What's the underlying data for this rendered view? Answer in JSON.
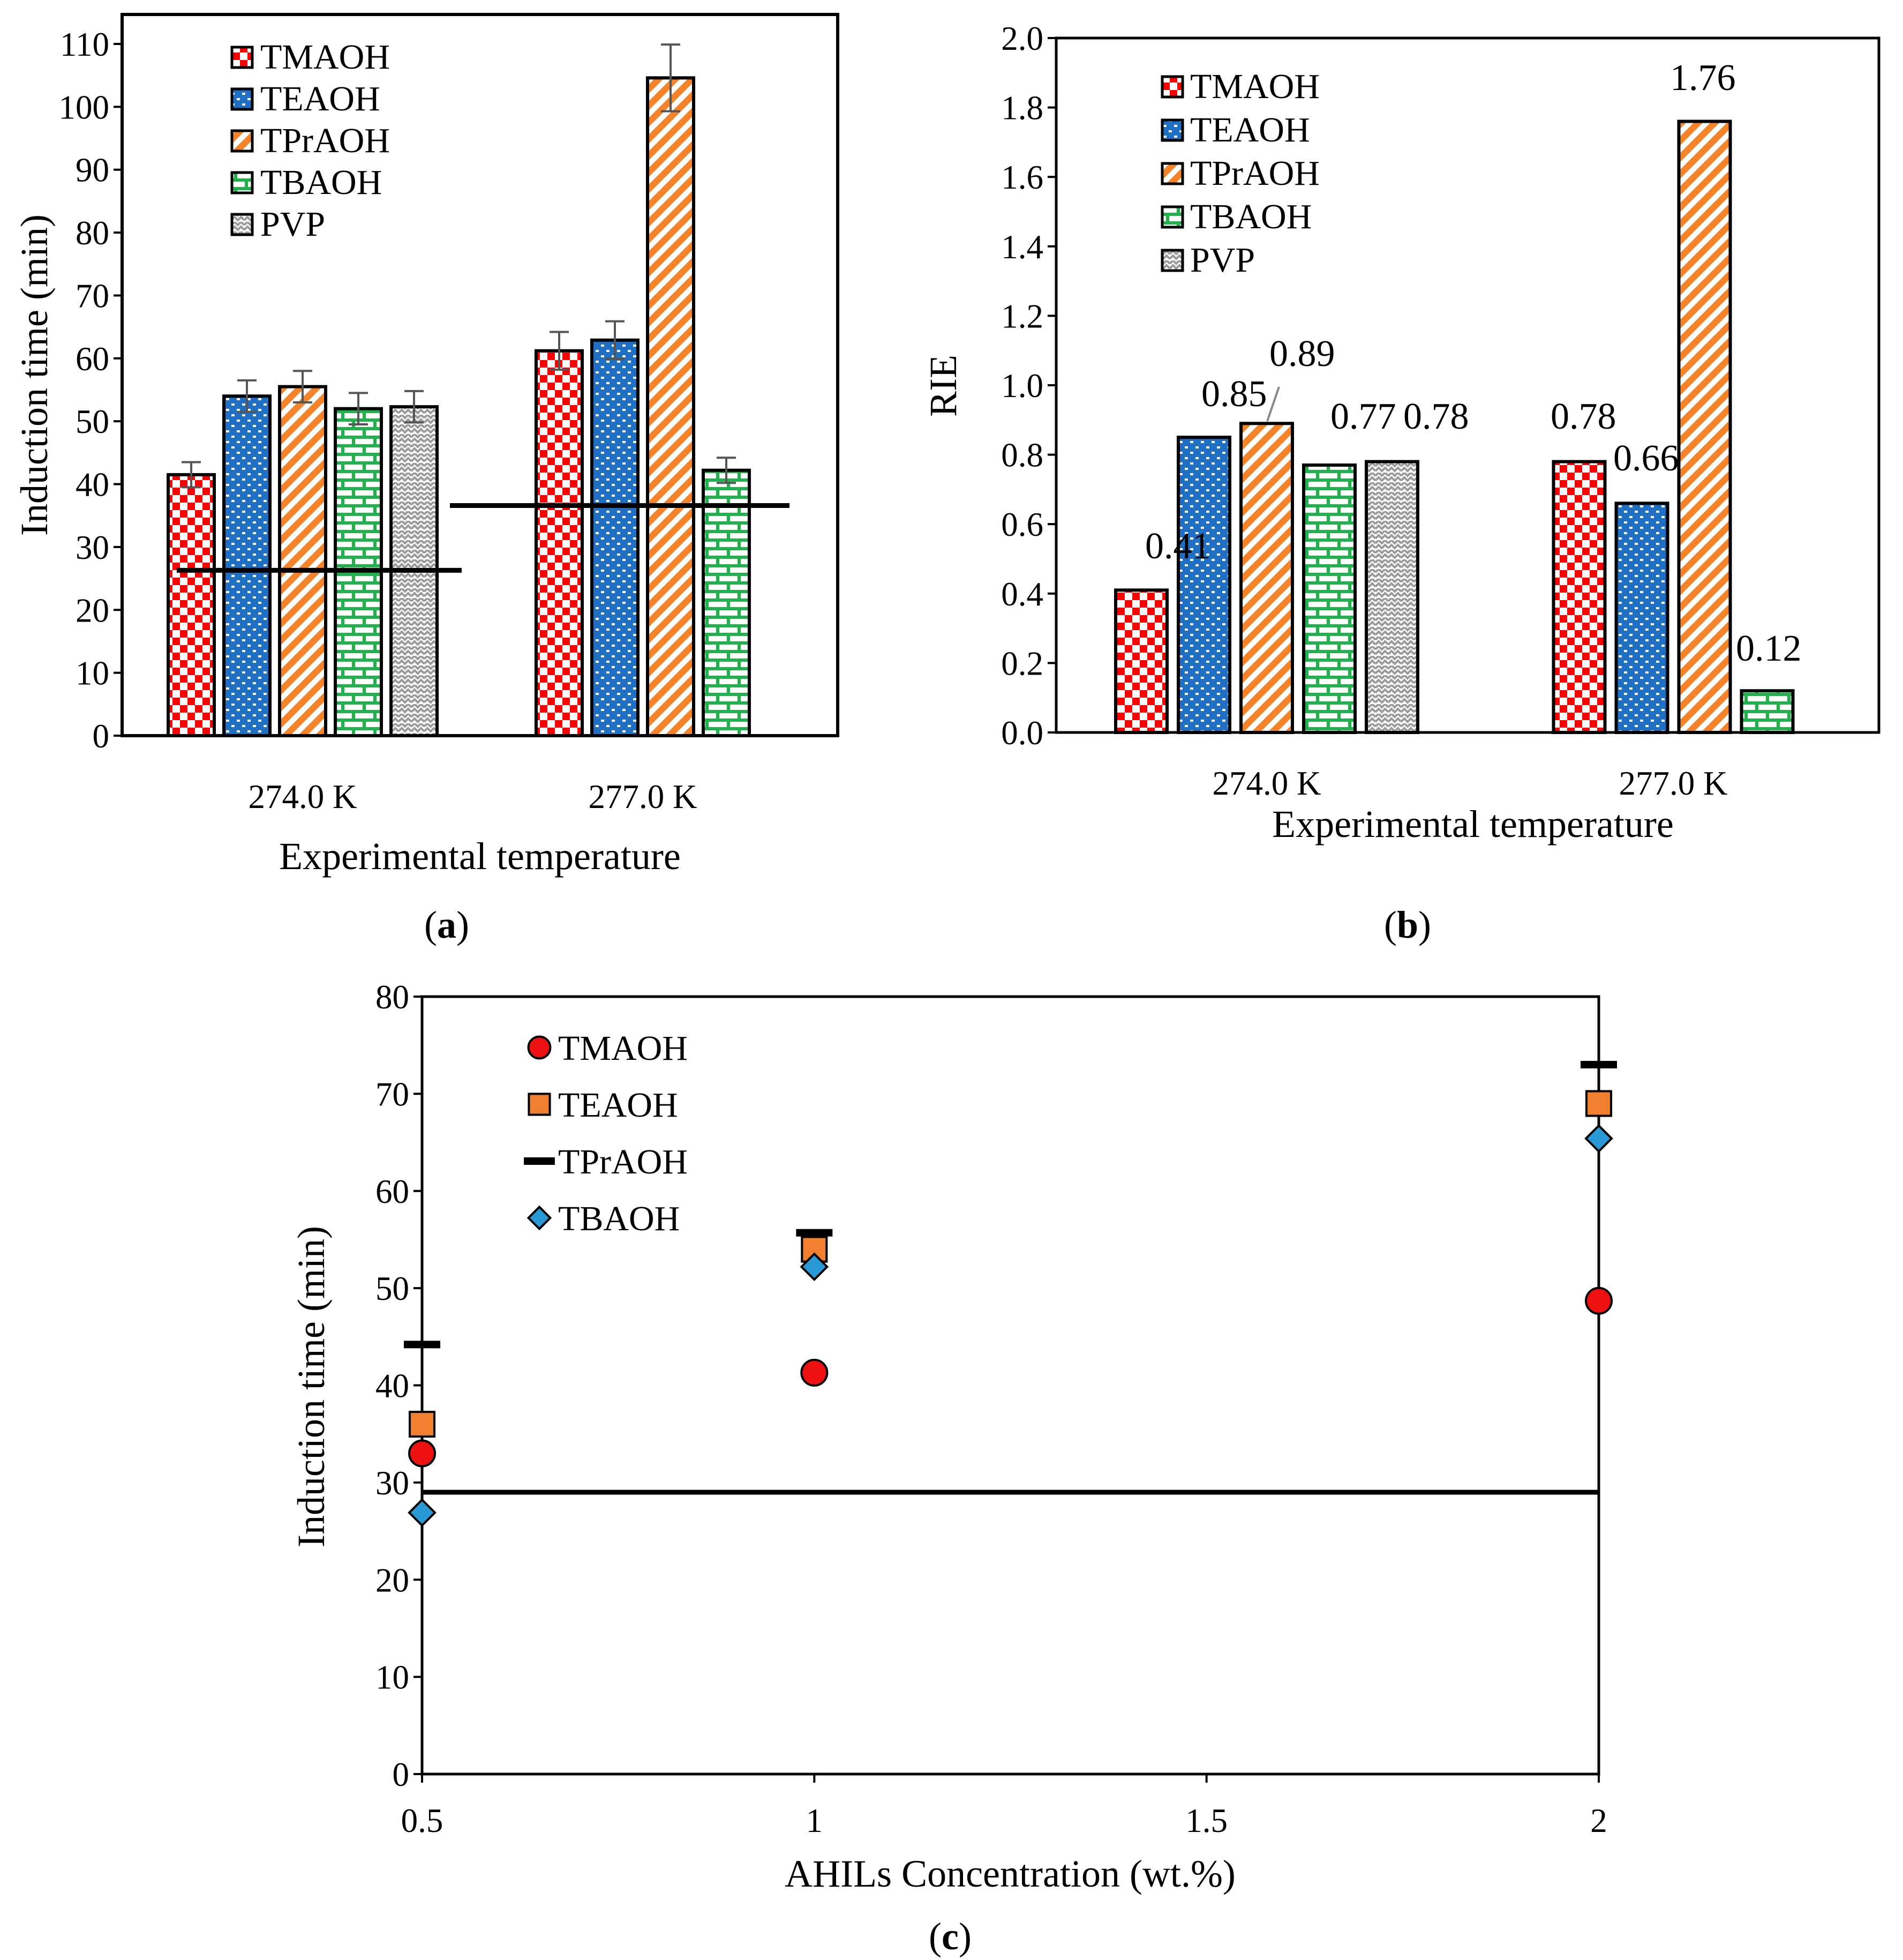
{
  "colors": {
    "TMAOH": "#ff0000",
    "TEAOH": "#1f6fc5",
    "TPrAOH": "#f5832a",
    "TBAOH": "#1db34a",
    "PVP": "#9a9a9a",
    "TMAOH_marker": "#ee1111",
    "TEAOH_marker": "#f08030",
    "TBAOH_marker": "#2a9ad6"
  },
  "chart_data": [
    {
      "id": "a",
      "type": "bar",
      "panel_label": "a",
      "categories": [
        "274.0 K",
        "277.0 K"
      ],
      "series": [
        {
          "name": "TMAOH",
          "pattern": "checker",
          "values": [
            41.5,
            61.2
          ],
          "errors": [
            2.0,
            3.0
          ]
        },
        {
          "name": "TEAOH",
          "pattern": "dots",
          "values": [
            54.0,
            62.9
          ],
          "errors": [
            2.5,
            3.0
          ]
        },
        {
          "name": "TPrAOH",
          "pattern": "stripes",
          "values": [
            55.5,
            104.6
          ],
          "errors": [
            2.5,
            5.3
          ]
        },
        {
          "name": "TBAOH",
          "pattern": "brick",
          "values": [
            52.0,
            42.2
          ],
          "errors": [
            2.5,
            2.0
          ]
        },
        {
          "name": "PVP",
          "pattern": "zigzag",
          "values": [
            52.3,
            null
          ],
          "errors": [
            2.5,
            null
          ]
        }
      ],
      "baselines": [
        26.3,
        36.6
      ],
      "xlabel": "Experimental temperature",
      "ylabel": "Induction time (min)",
      "ylim": [
        0,
        110
      ],
      "yticks": [
        "0",
        "10",
        "20",
        "30",
        "40",
        "50",
        "60",
        "70",
        "80",
        "90",
        "100",
        "110"
      ],
      "legend": "top-left"
    },
    {
      "id": "b",
      "type": "bar",
      "panel_label": "b",
      "categories": [
        "274.0 K",
        "277.0 K"
      ],
      "series": [
        {
          "name": "TMAOH",
          "pattern": "checker",
          "values": [
            0.41,
            0.78
          ],
          "labels": [
            "0.41",
            "0.78"
          ]
        },
        {
          "name": "TEAOH",
          "pattern": "dots",
          "values": [
            0.85,
            0.66
          ],
          "labels": [
            "0.85",
            "0.66"
          ]
        },
        {
          "name": "TPrAOH",
          "pattern": "stripes",
          "values": [
            0.89,
            1.76
          ],
          "labels": [
            "0.89",
            "1.76"
          ]
        },
        {
          "name": "TBAOH",
          "pattern": "brick",
          "values": [
            0.77,
            0.12
          ],
          "labels": [
            "0.77",
            "0.12"
          ]
        },
        {
          "name": "PVP",
          "pattern": "zigzag",
          "values": [
            0.78,
            null
          ],
          "labels": [
            "0.78",
            null
          ]
        }
      ],
      "xlabel": "Experimental temperature",
      "ylabel": "RIE",
      "ylim": [
        0,
        2.0
      ],
      "yticks": [
        "0.0",
        "0.2",
        "0.4",
        "0.6",
        "0.8",
        "1.0",
        "1.2",
        "1.4",
        "1.6",
        "1.8",
        "2.0"
      ],
      "legend": "top-left"
    },
    {
      "id": "c",
      "type": "scatter",
      "panel_label": "c",
      "x": [
        0.5,
        1,
        2
      ],
      "series": [
        {
          "name": "TMAOH",
          "marker": "circle",
          "values": [
            33.0,
            41.3,
            48.7
          ]
        },
        {
          "name": "TEAOH",
          "marker": "square",
          "values": [
            36.0,
            54.0,
            69.0
          ]
        },
        {
          "name": "TPrAOH",
          "marker": "dash",
          "values": [
            44.2,
            55.7,
            73.0
          ]
        },
        {
          "name": "TBAOH",
          "marker": "diamond",
          "values": [
            26.9,
            52.2,
            65.4
          ]
        }
      ],
      "baseline": 29.0,
      "xlabel": "AHILs Concentration (wt.%)",
      "ylabel": "Induction time (min)",
      "xlim": [
        0.5,
        2
      ],
      "xticks": [
        "0.5",
        "1",
        "1.5",
        "2"
      ],
      "ylim": [
        0,
        80
      ],
      "yticks": [
        "0",
        "10",
        "20",
        "30",
        "40",
        "50",
        "60",
        "70",
        "80"
      ],
      "legend": "top-left"
    }
  ]
}
